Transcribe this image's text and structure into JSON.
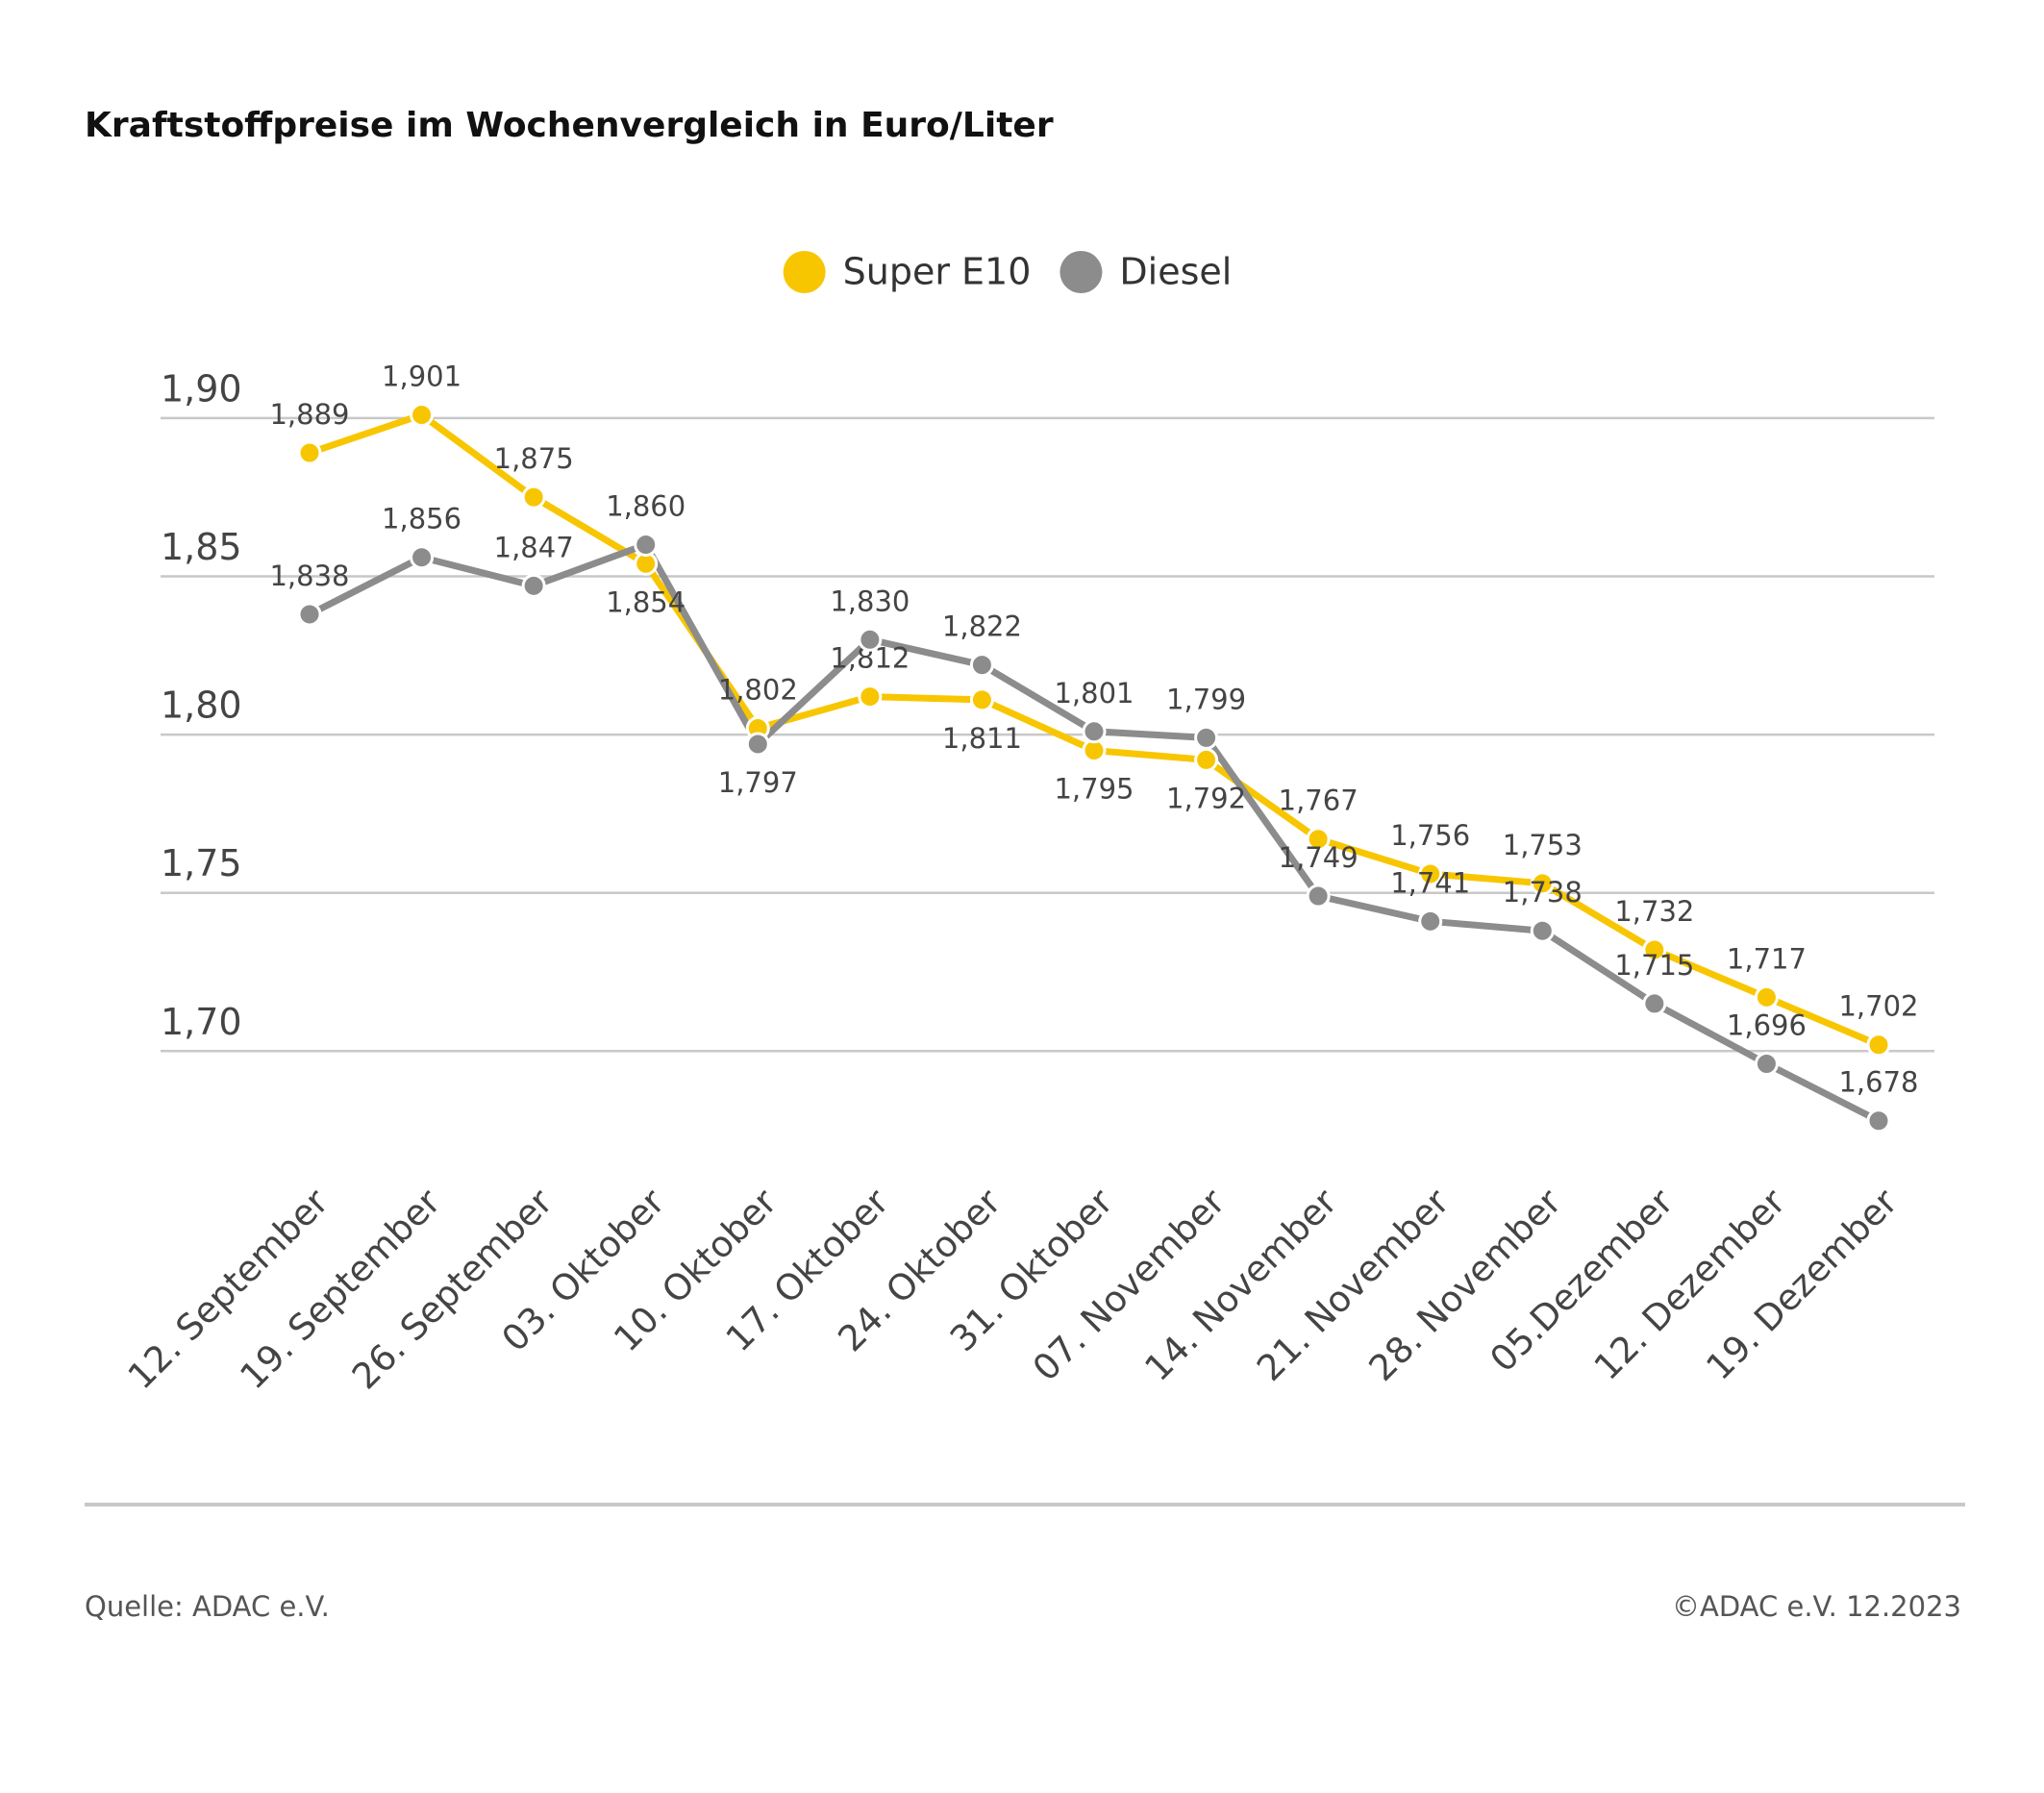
{
  "chart_data": {
    "type": "line",
    "title": "Kraftstoffpreise im Wochenvergleich in Euro/Liter",
    "categories": [
      "12. September",
      "19. September",
      "26. September",
      "03. Oktober",
      "10. Oktober",
      "17. Oktober",
      "24. Oktober",
      "31. Oktober",
      "07. November",
      "14. November",
      "21. November",
      "28. November",
      "05.Dezember",
      "12. Dezember",
      "19. Dezember"
    ],
    "series": [
      {
        "name": "Super E10",
        "color": "#f8c600",
        "values": [
          1.889,
          1.901,
          1.875,
          1.854,
          1.802,
          1.812,
          1.811,
          1.795,
          1.792,
          1.767,
          1.756,
          1.753,
          1.732,
          1.717,
          1.702
        ],
        "value_labels": [
          "1,889",
          "1,901",
          "1,875",
          "1,854",
          "1,802",
          "1,812",
          "1,811",
          "1,795",
          "1,792",
          "1,767",
          "1,756",
          "1,753",
          "1,732",
          "1,717",
          "1,702"
        ]
      },
      {
        "name": "Diesel",
        "color": "#8c8c8c",
        "values": [
          1.838,
          1.856,
          1.847,
          1.86,
          1.797,
          1.83,
          1.822,
          1.801,
          1.799,
          1.749,
          1.741,
          1.738,
          1.715,
          1.696,
          1.678
        ],
        "value_labels": [
          "1,838",
          "1,856",
          "1,847",
          "1,860",
          "1,797",
          "1,830",
          "1,822",
          "1,801",
          "1,799",
          "1,749",
          "1,741",
          "1,738",
          "1,715",
          "1,696",
          "1,678"
        ]
      }
    ],
    "ylim": [
      1.66,
      1.92
    ],
    "yticks": [
      {
        "value": 1.7,
        "label": "1,70"
      },
      {
        "value": 1.75,
        "label": "1,75"
      },
      {
        "value": 1.8,
        "label": "1,80"
      },
      {
        "value": 1.85,
        "label": "1,85"
      },
      {
        "value": 1.9,
        "label": "1,90"
      }
    ],
    "grid": true,
    "legend": "top",
    "source": "Quelle: ADAC e.V.",
    "credit": "©ADAC e.V. 12.2023"
  }
}
